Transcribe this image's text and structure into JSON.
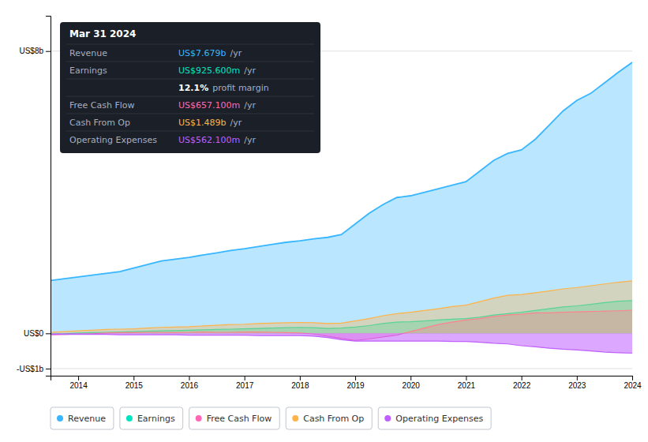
{
  "chart_data": {
    "type": "area",
    "title": "Mar 31 2024",
    "x": [
      2013.5,
      2013.75,
      2014.0,
      2014.25,
      2014.5,
      2014.75,
      2015.0,
      2015.25,
      2015.5,
      2015.75,
      2016.0,
      2016.25,
      2016.5,
      2016.75,
      2017.0,
      2017.25,
      2017.5,
      2017.75,
      2018.0,
      2018.25,
      2018.5,
      2018.75,
      2019.0,
      2019.25,
      2019.5,
      2019.75,
      2020.0,
      2020.25,
      2020.5,
      2020.75,
      2021.0,
      2021.25,
      2021.5,
      2021.75,
      2022.0,
      2022.25,
      2022.5,
      2022.75,
      2023.0,
      2023.25,
      2023.5,
      2023.75,
      2024.0
    ],
    "series": [
      {
        "name": "Revenue",
        "color": "#38b6ff",
        "values": [
          1.5,
          1.55,
          1.6,
          1.65,
          1.7,
          1.75,
          1.85,
          1.95,
          2.05,
          2.1,
          2.15,
          2.22,
          2.28,
          2.35,
          2.4,
          2.46,
          2.52,
          2.58,
          2.62,
          2.68,
          2.72,
          2.8,
          3.1,
          3.4,
          3.65,
          3.85,
          3.9,
          4.0,
          4.1,
          4.2,
          4.3,
          4.6,
          4.9,
          5.1,
          5.2,
          5.5,
          5.9,
          6.3,
          6.6,
          6.8,
          7.1,
          7.4,
          7.679
        ]
      },
      {
        "name": "Earnings",
        "color": "#00e5c0",
        "values": [
          -0.02,
          -0.01,
          0.01,
          0.02,
          0.03,
          0.04,
          0.05,
          0.06,
          0.07,
          0.08,
          0.09,
          0.1,
          0.11,
          0.12,
          0.13,
          0.14,
          0.15,
          0.16,
          0.17,
          0.16,
          0.14,
          0.15,
          0.18,
          0.22,
          0.28,
          0.32,
          0.33,
          0.35,
          0.38,
          0.4,
          0.42,
          0.46,
          0.52,
          0.56,
          0.6,
          0.65,
          0.7,
          0.75,
          0.78,
          0.82,
          0.87,
          0.91,
          0.9256
        ]
      },
      {
        "name": "Free Cash Flow",
        "color": "#ff69b4",
        "values": [
          -0.04,
          -0.03,
          -0.02,
          -0.01,
          0.01,
          0.02,
          0.02,
          0.03,
          0.03,
          0.02,
          0.03,
          0.04,
          0.03,
          0.03,
          0.04,
          0.04,
          0.03,
          0.02,
          0.01,
          -0.02,
          -0.08,
          -0.14,
          -0.2,
          -0.16,
          -0.1,
          -0.05,
          0.05,
          0.15,
          0.25,
          0.32,
          0.38,
          0.42,
          0.48,
          0.52,
          0.54,
          0.58,
          0.58,
          0.6,
          0.61,
          0.62,
          0.63,
          0.64,
          0.6571
        ]
      },
      {
        "name": "Cash From Op",
        "color": "#ffb347",
        "values": [
          0.03,
          0.05,
          0.07,
          0.09,
          0.11,
          0.12,
          0.13,
          0.15,
          0.17,
          0.18,
          0.19,
          0.21,
          0.23,
          0.25,
          0.26,
          0.28,
          0.29,
          0.3,
          0.31,
          0.3,
          0.28,
          0.29,
          0.35,
          0.42,
          0.5,
          0.56,
          0.6,
          0.65,
          0.7,
          0.76,
          0.8,
          0.9,
          1.0,
          1.08,
          1.1,
          1.15,
          1.2,
          1.26,
          1.3,
          1.35,
          1.4,
          1.45,
          1.489
        ]
      },
      {
        "name": "Operating Expenses",
        "color": "#bf5fff",
        "values": [
          -0.03,
          -0.03,
          -0.03,
          -0.03,
          -0.03,
          -0.04,
          -0.04,
          -0.04,
          -0.04,
          -0.04,
          -0.05,
          -0.05,
          -0.05,
          -0.05,
          -0.05,
          -0.06,
          -0.06,
          -0.06,
          -0.06,
          -0.08,
          -0.12,
          -0.18,
          -0.22,
          -0.22,
          -0.22,
          -0.22,
          -0.22,
          -0.22,
          -0.22,
          -0.23,
          -0.23,
          -0.25,
          -0.28,
          -0.3,
          -0.35,
          -0.38,
          -0.42,
          -0.45,
          -0.47,
          -0.5,
          -0.53,
          -0.55,
          -0.5621
        ]
      }
    ],
    "xlim": [
      2013.5,
      2024.0
    ],
    "xticks": [
      2014,
      2015,
      2016,
      2017,
      2018,
      2019,
      2020,
      2021,
      2022,
      2023,
      2024
    ],
    "ylim": [
      -1.2,
      9.0
    ],
    "yticks": [
      {
        "value": -1,
        "label": "-US$1b"
      },
      {
        "value": 0,
        "label": "US$0"
      },
      {
        "value": 8,
        "label": "US$8b"
      }
    ],
    "grid": true,
    "legend": "bottom",
    "annotations": [
      {
        "label": "Revenue",
        "value": "US$7.679b",
        "unit": "/yr",
        "color": "#38b6ff"
      },
      {
        "label": "Earnings",
        "value": "US$925.600m",
        "unit": "/yr",
        "color": "#00e5c0"
      },
      {
        "value": "12.1%",
        "unit": "profit margin",
        "color": "#ffffff"
      },
      {
        "label": "Free Cash Flow",
        "value": "US$657.100m",
        "unit": "/yr",
        "color": "#ff69b4"
      },
      {
        "label": "Cash From Op",
        "value": "US$1.489b",
        "unit": "/yr",
        "color": "#ffb347"
      },
      {
        "label": "Operating Expenses",
        "value": "US$562.100m",
        "unit": "/yr",
        "color": "#bf5fff"
      }
    ]
  }
}
